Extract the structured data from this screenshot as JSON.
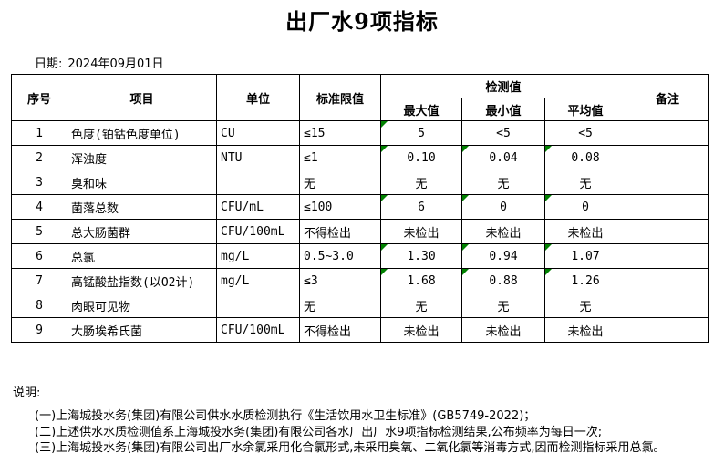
{
  "title": "出厂水9项指标",
  "date": {
    "label": "日期:",
    "value": "2024年09月01日"
  },
  "colors": {
    "flag_green": "#008000",
    "border": "#000000",
    "text": "#000000",
    "background": "#ffffff"
  },
  "table": {
    "headers": {
      "seq": "序号",
      "item": "项目",
      "unit": "单位",
      "limit": "标准限值",
      "detection": "检测值",
      "max": "最大值",
      "min": "最小值",
      "avg": "平均值",
      "remark": "备注"
    },
    "rows": [
      {
        "seq": "1",
        "item": "色度(铂钴色度单位)",
        "unit": "CU",
        "limit": "≤15",
        "max": "5",
        "min": "<5",
        "avg": "<5",
        "remark": "",
        "flagged": [
          "max"
        ]
      },
      {
        "seq": "2",
        "item": "浑浊度",
        "unit": "NTU",
        "limit": "≤1",
        "max": "0.10",
        "min": "0.04",
        "avg": "0.08",
        "remark": "",
        "flagged": [
          "max",
          "min",
          "avg"
        ]
      },
      {
        "seq": "3",
        "item": "臭和味",
        "unit": "",
        "limit": "无",
        "max": "无",
        "min": "无",
        "avg": "无",
        "remark": "",
        "flagged": []
      },
      {
        "seq": "4",
        "item": "菌落总数",
        "unit": "CFU/mL",
        "limit": "≤100",
        "max": "6",
        "min": "0",
        "avg": "0",
        "remark": "",
        "flagged": [
          "max",
          "min",
          "avg"
        ]
      },
      {
        "seq": "5",
        "item": "总大肠菌群",
        "unit": "CFU/100mL",
        "limit": "不得检出",
        "max": "未检出",
        "min": "未检出",
        "avg": "未检出",
        "remark": "",
        "flagged": []
      },
      {
        "seq": "6",
        "item": "总氯",
        "unit": "mg/L",
        "limit": "0.5~3.0",
        "max": "1.30",
        "min": "0.94",
        "avg": "1.07",
        "remark": "",
        "flagged": [
          "max",
          "min",
          "avg"
        ]
      },
      {
        "seq": "7",
        "item": "高锰酸盐指数(以O2计)",
        "unit": "mg/L",
        "limit": "≤3",
        "max": "1.68",
        "min": "0.88",
        "avg": "1.26",
        "remark": "",
        "flagged": [
          "max",
          "min",
          "avg"
        ]
      },
      {
        "seq": "8",
        "item": "肉眼可见物",
        "unit": "",
        "limit": "无",
        "max": "无",
        "min": "无",
        "avg": "无",
        "remark": "",
        "flagged": []
      },
      {
        "seq": "9",
        "item": "大肠埃希氏菌",
        "unit": "CFU/100mL",
        "limit": "不得检出",
        "max": "未检出",
        "min": "未检出",
        "avg": "未检出",
        "remark": "",
        "flagged": []
      }
    ]
  },
  "notes": {
    "label": "说明:",
    "items": [
      "(一)上海城投水务(集团)有限公司供水水质检测执行《生活饮用水卫生标准》(GB5749-2022)；",
      "(二)上述供水水质检测值系上海城投水务(集团)有限公司各水厂出厂水9项指标检测结果,公布频率为每日一次;",
      "(三)上海城投水务(集团)有限公司出厂水余氯采用化合氯形式,未采用臭氧、二氧化氯等消毒方式,因而检测指标采用总氯。"
    ]
  }
}
